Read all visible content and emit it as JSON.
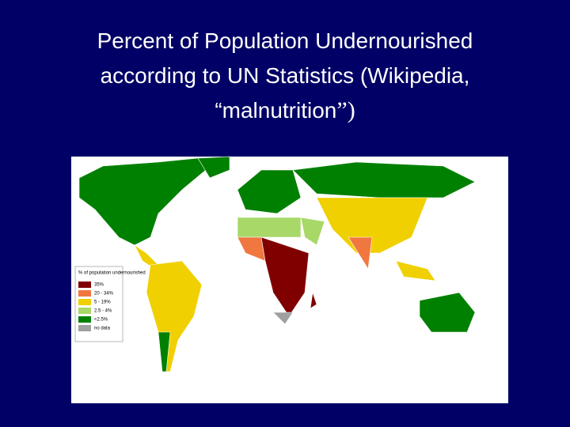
{
  "title": {
    "line1": "Percent of Population Undernourished",
    "line2": "according to UN Statistics (Wikipedia,",
    "line3": "“malnutrition",
    "line3_tail": "”)"
  },
  "legend": {
    "heading": "% of population undernourished",
    "items": [
      {
        "label": "35%",
        "color": "#800000"
      },
      {
        "label": "20 - 34%",
        "color": "#f07840"
      },
      {
        "label": "5 - 19%",
        "color": "#f0d000"
      },
      {
        "label": "2.5 - 4%",
        "color": "#a8d868"
      },
      {
        "label": "<2.5%",
        "color": "#008000"
      },
      {
        "label": "no data",
        "color": "#a0a0a0"
      }
    ]
  }
}
